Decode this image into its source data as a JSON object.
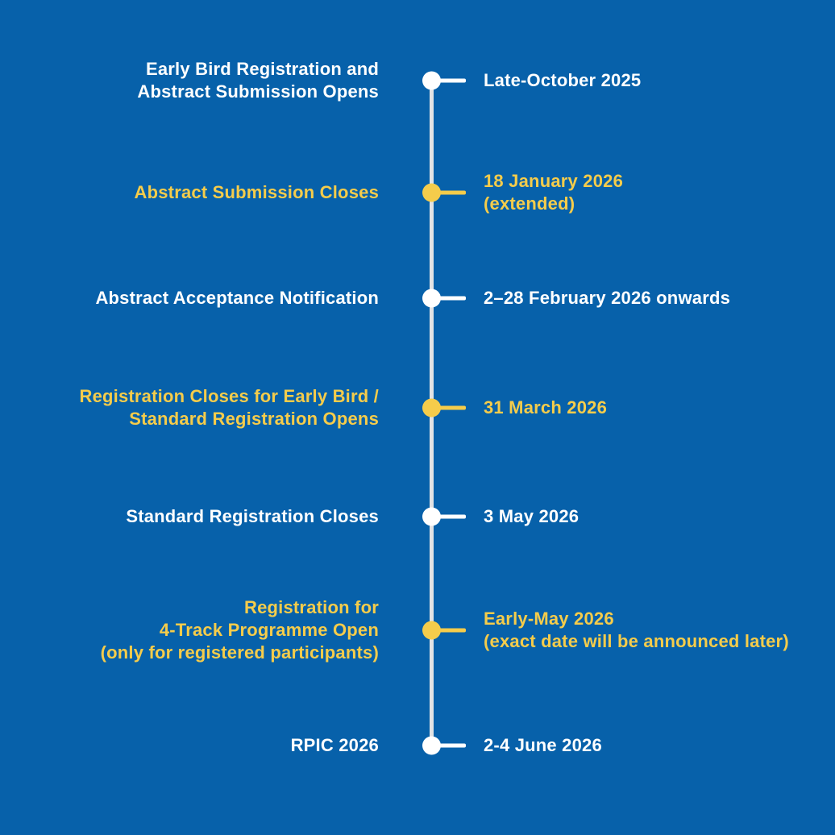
{
  "colors": {
    "background": "#0761AA",
    "accent_yellow": "#F5CC4B",
    "white": "#FFFFFF",
    "axis_line": "#E2E3E5"
  },
  "timeline": {
    "events": [
      {
        "label": "Early Bird Registration and\nAbstract Submission Opens",
        "date": "Late-October 2025",
        "highlighted": false
      },
      {
        "label": "Abstract Submission Closes",
        "date": "18 January 2026\n(extended)",
        "highlighted": true
      },
      {
        "label": "Abstract Acceptance Notification",
        "date": "2–28 February 2026 onwards",
        "highlighted": false
      },
      {
        "label": "Registration Closes for Early Bird /\nStandard Registration Opens",
        "date": "31 March 2026",
        "highlighted": true
      },
      {
        "label": "Standard Registration Closes",
        "date": "3 May 2026",
        "highlighted": false
      },
      {
        "label": "Registration for\n4-Track Programme Open\n(only for registered participants)",
        "date": "Early-May 2026\n(exact date will be announced later)",
        "highlighted": true
      },
      {
        "label": "RPIC 2026",
        "date": "2-4 June 2026",
        "highlighted": false
      }
    ]
  }
}
